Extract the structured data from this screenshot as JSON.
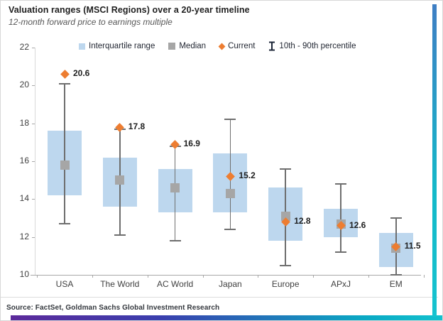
{
  "header": {
    "title": "Valuation ranges (MSCI Regions) over a 20-year timeline",
    "subtitle": "12-month forward price to earnings multiple"
  },
  "legend": {
    "items": [
      {
        "icon": "blue-square",
        "label": "Interquartile range"
      },
      {
        "icon": "gray-square",
        "label": "Median"
      },
      {
        "icon": "orange-diamond",
        "label": "Current"
      },
      {
        "icon": "ibeam",
        "label": "10th - 90th percentile"
      }
    ]
  },
  "chart_data": {
    "type": "box",
    "title": "Valuation ranges (MSCI Regions) over a 20-year timeline",
    "subtitle": "12-month forward price to earnings multiple",
    "ylabel": "12-month forward P/E",
    "ylim": [
      10,
      22
    ],
    "ytick_step": 2,
    "grid": false,
    "legend_position": "top",
    "legend": [
      "Interquartile range",
      "Median",
      "Current",
      "10th - 90th percentile"
    ],
    "categories": [
      "USA",
      "The World",
      "AC World",
      "Japan",
      "Europe",
      "APxJ",
      "EM"
    ],
    "series": [
      {
        "region": "USA",
        "p10": 12.7,
        "q1": 14.2,
        "median": 15.8,
        "q3": 17.6,
        "p90": 20.1,
        "current": 20.6,
        "current_label": "20.6"
      },
      {
        "region": "The World",
        "p10": 12.1,
        "q1": 13.6,
        "median": 15.0,
        "q3": 16.2,
        "p90": 17.7,
        "current": 17.8,
        "current_label": "17.8"
      },
      {
        "region": "AC World",
        "p10": 11.8,
        "q1": 13.3,
        "median": 14.6,
        "q3": 15.6,
        "p90": 16.8,
        "current": 16.9,
        "current_label": "16.9"
      },
      {
        "region": "Japan",
        "p10": 12.4,
        "q1": 13.3,
        "median": 14.3,
        "q3": 16.4,
        "p90": 18.2,
        "current": 15.2,
        "current_label": "15.2"
      },
      {
        "region": "Europe",
        "p10": 10.5,
        "q1": 11.8,
        "median": 13.1,
        "q3": 14.6,
        "p90": 15.6,
        "current": 12.8,
        "current_label": "12.8"
      },
      {
        "region": "APxJ",
        "p10": 11.2,
        "q1": 12.0,
        "median": 12.7,
        "q3": 13.5,
        "p90": 14.8,
        "current": 12.6,
        "current_label": "12.6"
      },
      {
        "region": "EM",
        "p10": 10.0,
        "q1": 10.4,
        "median": 11.4,
        "q3": 12.2,
        "p90": 13.0,
        "current": 11.5,
        "current_label": "11.5"
      }
    ]
  },
  "source": {
    "text": "Source: FactSet, Goldman Sachs Global Investment Research"
  },
  "colors": {
    "iqr_box": "#BDD7EE",
    "median": "#A6A6A6",
    "current": "#ED7D31",
    "whisker": "#6E6E6E",
    "axis_line": "#a8a8a8",
    "grid_line": "#d9d9d9",
    "value_label": "#1f1f1f",
    "tick_label": "#3f3f3f",
    "accent_left": "#5C2A9B",
    "accent_right": "#13C1CE"
  }
}
